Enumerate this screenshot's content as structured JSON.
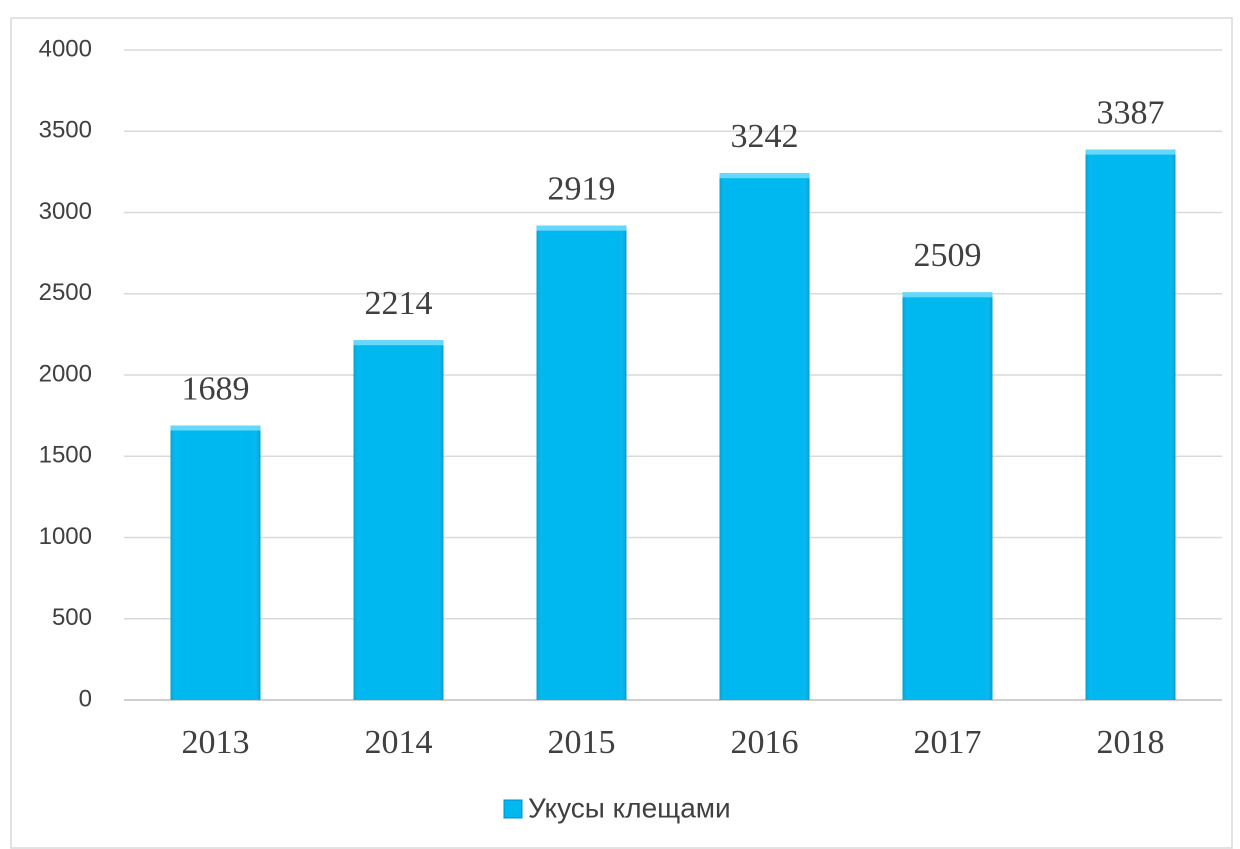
{
  "chart_data": {
    "type": "bar",
    "categories": [
      "2013",
      "2014",
      "2015",
      "2016",
      "2017",
      "2018"
    ],
    "series": [
      {
        "name": "Укусы клещами",
        "color": "#00b8f0",
        "values": [
          1689,
          2214,
          2919,
          3242,
          2509,
          3387
        ]
      }
    ],
    "ylim": [
      0,
      4000
    ],
    "yticks": [
      0,
      500,
      1000,
      1500,
      2000,
      2500,
      3000,
      3500,
      4000
    ],
    "grid": true,
    "legend": "bottom"
  }
}
